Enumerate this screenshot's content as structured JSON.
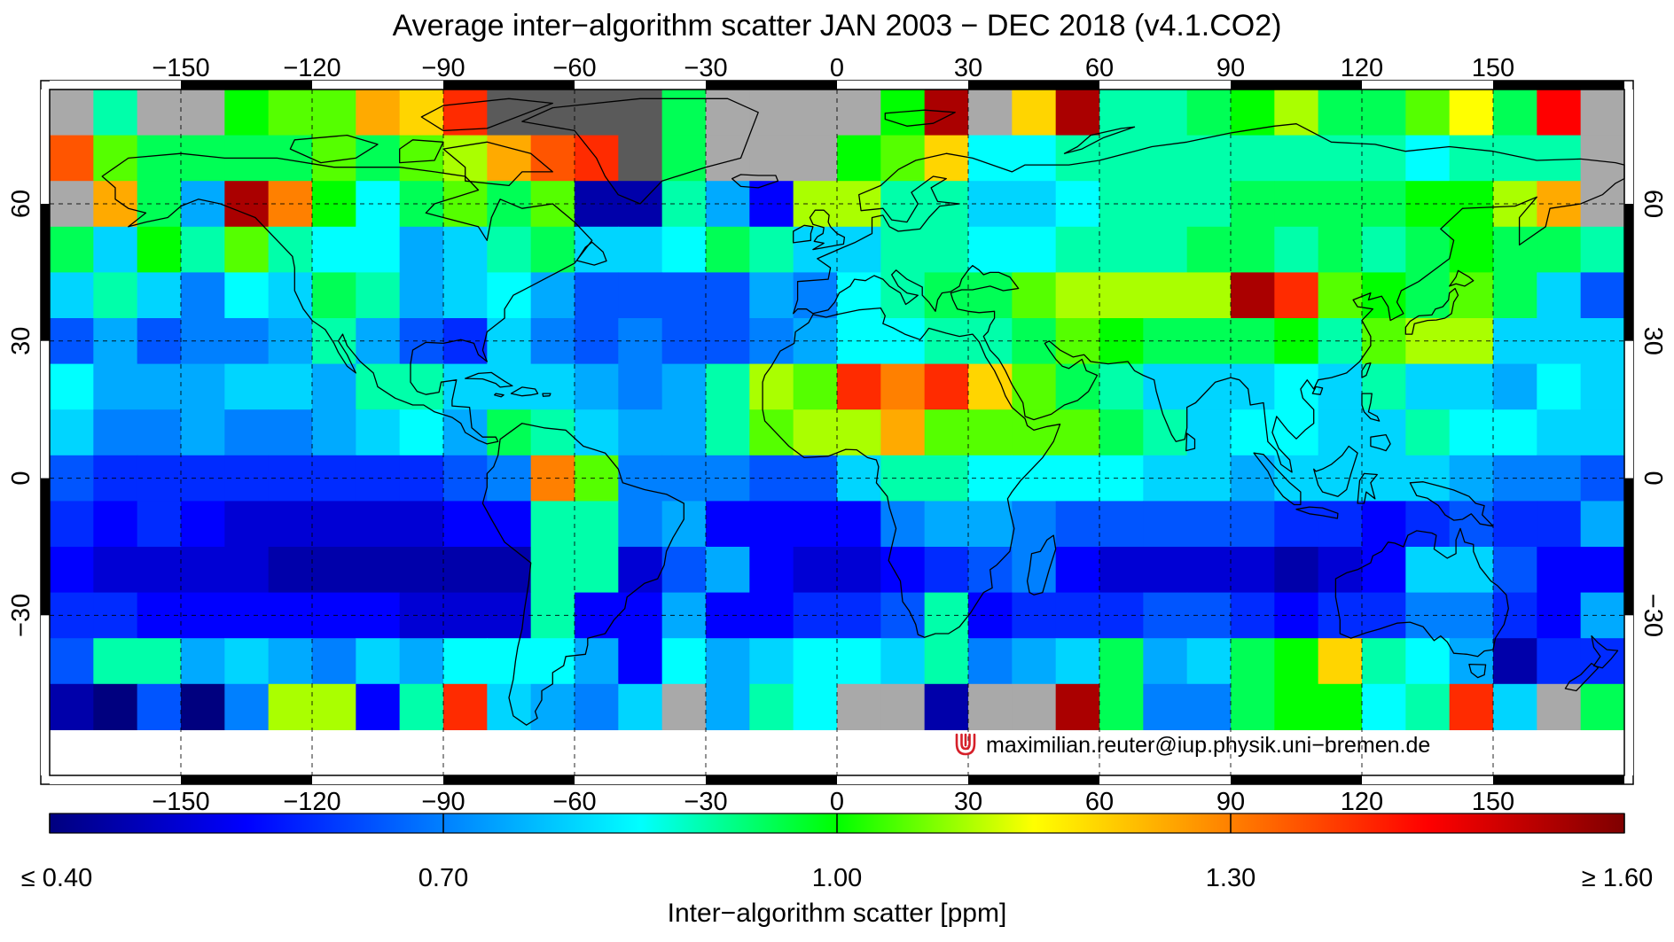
{
  "title": "Average inter−algorithm scatter JAN 2003 − DEC 2018 (v4.1.CO2)",
  "credit": "maximilian.reuter@iup.physik.uni−bremen.de",
  "colorbar_label": "Inter−algorithm scatter [ppm]",
  "colorbar_ticks": [
    {
      "value": 0.4,
      "label": "≤ 0.40"
    },
    {
      "value": 0.7,
      "label": "0.70"
    },
    {
      "value": 1.0,
      "label": "1.00"
    },
    {
      "value": 1.3,
      "label": "1.30"
    },
    {
      "value": 1.6,
      "label": "≥ 1.60"
    }
  ],
  "colors": {
    "land": "#5a5a5a",
    "nodata": "#a9a9a9",
    "colormap": [
      "#00007f",
      "#0000ff",
      "#0080ff",
      "#00ffff",
      "#00ff00",
      "#ffff00",
      "#ff8000",
      "#ff0000",
      "#7f0000"
    ]
  },
  "chart_data": {
    "type": "heatmap",
    "projection": "equirectangular",
    "xlim": [
      -180,
      180
    ],
    "ylim": [
      -65,
      85
    ],
    "x_ticks": [
      -150,
      -120,
      -90,
      -60,
      -30,
      0,
      30,
      60,
      90,
      120,
      150
    ],
    "y_ticks": [
      -30,
      0,
      30,
      60
    ],
    "x_tick_labels": [
      "−150",
      "−120",
      "−90",
      "−60",
      "−30",
      "0",
      "30",
      "60",
      "90",
      "120",
      "150"
    ],
    "y_tick_labels": [
      "−30",
      "0",
      "30",
      "60"
    ],
    "grid": true,
    "cell_size_deg": 10,
    "lon_start": -180,
    "lat_top": 85,
    "value_range": [
      0.4,
      1.6
    ],
    "legend": "colorbar bottom",
    "rows": [
      [
        -1,
        0.9,
        -1,
        -1,
        1.0,
        1.05,
        1.05,
        1.25,
        1.2,
        1.4,
        -2,
        -2,
        -2,
        -2,
        0.95,
        -1,
        -1,
        -1,
        -1,
        1.0,
        1.55,
        -1,
        1.2,
        1.55,
        0.9,
        0.9,
        0.95,
        1.0,
        1.1,
        0.95,
        0.95,
        1.05,
        1.15,
        0.95,
        1.45,
        -1
      ],
      [
        1.35,
        1.05,
        0.95,
        0.95,
        0.95,
        0.95,
        1.05,
        0.95,
        1.05,
        1.1,
        1.25,
        1.35,
        1.4,
        -2,
        0.95,
        -1,
        -1,
        -1,
        1.0,
        1.05,
        1.2,
        0.85,
        0.85,
        0.9,
        0.9,
        0.9,
        0.9,
        0.9,
        0.9,
        0.9,
        0.9,
        0.85,
        0.9,
        0.9,
        0.9,
        -1
      ],
      [
        -1,
        1.25,
        0.95,
        0.75,
        1.55,
        1.3,
        1.0,
        0.85,
        0.95,
        1.05,
        0.95,
        1.05,
        0.45,
        0.45,
        0.9,
        0.75,
        0.55,
        1.1,
        1.1,
        0.9,
        0.9,
        0.8,
        0.8,
        0.85,
        0.9,
        0.9,
        0.9,
        0.95,
        0.95,
        0.95,
        0.95,
        1.0,
        1.0,
        1.1,
        1.25,
        -1
      ],
      [
        0.95,
        0.8,
        1.0,
        0.9,
        1.05,
        0.9,
        0.85,
        0.85,
        0.75,
        0.8,
        0.9,
        0.95,
        0.8,
        0.8,
        0.85,
        0.95,
        0.9,
        0.8,
        0.8,
        0.9,
        0.9,
        0.85,
        0.85,
        0.9,
        0.9,
        0.9,
        0.95,
        0.95,
        0.9,
        0.95,
        0.9,
        0.95,
        1.0,
        0.95,
        0.95,
        0.9
      ],
      [
        0.8,
        0.9,
        0.8,
        0.7,
        0.85,
        0.8,
        0.95,
        0.9,
        0.75,
        0.8,
        0.85,
        0.75,
        0.65,
        0.65,
        0.65,
        0.65,
        0.75,
        0.7,
        0.85,
        0.9,
        0.95,
        0.95,
        1.05,
        1.1,
        1.1,
        1.1,
        1.1,
        1.55,
        1.4,
        1.05,
        1.0,
        0.95,
        1.05,
        0.95,
        0.8,
        0.65
      ],
      [
        0.65,
        0.75,
        0.65,
        0.7,
        0.7,
        0.75,
        0.9,
        0.75,
        0.65,
        0.6,
        0.8,
        0.7,
        0.65,
        0.7,
        0.65,
        0.65,
        0.7,
        0.75,
        0.85,
        0.85,
        0.9,
        0.9,
        0.95,
        1.05,
        1.0,
        0.95,
        0.95,
        0.95,
        1.0,
        0.9,
        1.05,
        1.1,
        1.1,
        0.8,
        0.8,
        0.8
      ],
      [
        0.85,
        0.75,
        0.75,
        0.75,
        0.8,
        0.8,
        0.75,
        0.9,
        0.9,
        0.8,
        0.8,
        0.8,
        0.75,
        0.7,
        0.75,
        0.9,
        1.1,
        1.05,
        1.4,
        1.3,
        1.4,
        1.2,
        1.05,
        0.95,
        0.9,
        0.8,
        0.8,
        0.8,
        0.85,
        0.8,
        0.9,
        0.8,
        0.8,
        0.75,
        0.85,
        0.8
      ],
      [
        0.8,
        0.7,
        0.7,
        0.75,
        0.7,
        0.7,
        0.75,
        0.8,
        0.85,
        0.75,
        0.95,
        0.9,
        0.8,
        0.75,
        0.75,
        0.9,
        1.05,
        1.1,
        1.1,
        1.25,
        1.05,
        1.05,
        1.05,
        1.05,
        0.95,
        0.9,
        0.8,
        0.85,
        0.85,
        0.8,
        0.8,
        0.9,
        0.85,
        0.85,
        0.8,
        0.8
      ],
      [
        0.65,
        0.6,
        0.6,
        0.6,
        0.6,
        0.6,
        0.6,
        0.6,
        0.6,
        0.65,
        0.7,
        1.3,
        1.05,
        0.7,
        0.7,
        0.7,
        0.65,
        0.65,
        0.8,
        0.9,
        0.9,
        0.85,
        0.85,
        0.85,
        0.85,
        0.8,
        0.8,
        0.75,
        0.8,
        0.8,
        0.8,
        0.8,
        0.75,
        0.7,
        0.7,
        0.65
      ],
      [
        0.6,
        0.55,
        0.6,
        0.55,
        0.5,
        0.5,
        0.5,
        0.5,
        0.5,
        0.55,
        0.55,
        0.9,
        0.9,
        0.7,
        0.75,
        0.55,
        0.55,
        0.55,
        0.55,
        0.7,
        0.75,
        0.75,
        0.7,
        0.65,
        0.65,
        0.65,
        0.65,
        0.65,
        0.6,
        0.6,
        0.55,
        0.6,
        0.65,
        0.6,
        0.6,
        0.75
      ],
      [
        0.55,
        0.5,
        0.5,
        0.5,
        0.5,
        0.45,
        0.45,
        0.45,
        0.45,
        0.45,
        0.45,
        0.9,
        0.9,
        0.5,
        0.65,
        0.75,
        0.55,
        0.5,
        0.5,
        0.55,
        0.6,
        0.65,
        0.7,
        0.55,
        0.5,
        0.5,
        0.5,
        0.5,
        0.45,
        0.5,
        0.55,
        0.8,
        0.8,
        0.65,
        0.55,
        0.55
      ],
      [
        0.6,
        0.6,
        0.55,
        0.55,
        0.55,
        0.55,
        0.55,
        0.55,
        0.5,
        0.5,
        0.5,
        0.9,
        0.55,
        0.55,
        0.75,
        0.55,
        0.55,
        0.6,
        0.6,
        0.65,
        0.9,
        0.55,
        0.6,
        0.6,
        0.6,
        0.65,
        0.65,
        0.6,
        0.55,
        0.6,
        0.6,
        0.7,
        0.7,
        0.6,
        0.55,
        0.75
      ],
      [
        0.65,
        0.9,
        0.9,
        0.75,
        0.8,
        0.75,
        0.7,
        0.8,
        0.75,
        0.85,
        0.85,
        0.85,
        0.75,
        0.55,
        0.85,
        0.75,
        0.8,
        0.85,
        0.85,
        0.8,
        0.9,
        0.7,
        0.75,
        0.8,
        0.95,
        0.75,
        0.8,
        0.95,
        1.0,
        1.2,
        0.9,
        0.85,
        0.75,
        0.45,
        0.6,
        0.6
      ],
      [
        0.45,
        0.4,
        0.65,
        0.4,
        0.7,
        1.1,
        1.1,
        0.55,
        0.9,
        1.4,
        0.8,
        0.75,
        0.7,
        0.8,
        -1,
        0.75,
        0.9,
        0.85,
        -1,
        -1,
        0.45,
        -1,
        -1,
        1.55,
        0.95,
        0.7,
        0.7,
        0.95,
        1.0,
        1.0,
        0.85,
        0.9,
        1.4,
        0.8,
        -1,
        0.95
      ]
    ]
  }
}
